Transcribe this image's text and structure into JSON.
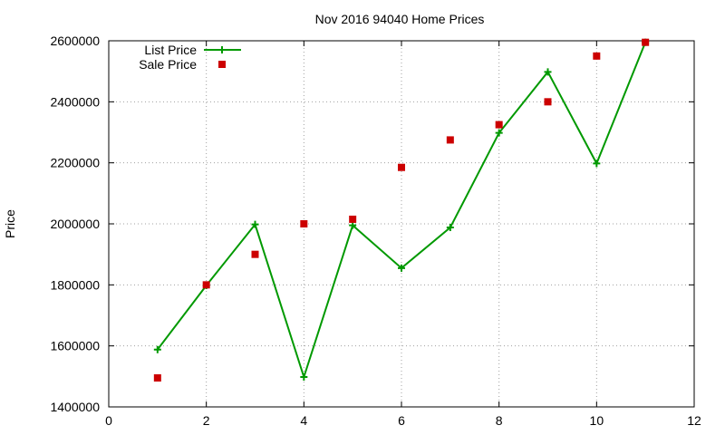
{
  "chart_data": {
    "type": "line",
    "title": "Nov 2016 94040 Home Prices",
    "xlabel": "",
    "ylabel": "Price",
    "xlim": [
      0,
      12
    ],
    "ylim": [
      1400000,
      2600000
    ],
    "xticks": [
      "0",
      "2",
      "4",
      "6",
      "8",
      "10",
      "12"
    ],
    "yticks": [
      "1400000",
      "1600000",
      "1800000",
      "2000000",
      "2200000",
      "2400000",
      "2600000"
    ],
    "grid": true,
    "legend_position": "top-left",
    "series": [
      {
        "name": "List Price",
        "style": "line-plus",
        "color": "#009900",
        "x": [
          1,
          2,
          3,
          4,
          5,
          6,
          7,
          8,
          9,
          10,
          11
        ],
        "y": [
          1588000,
          1798000,
          1998000,
          1498000,
          1995000,
          1855000,
          1988000,
          2298000,
          2498000,
          2198000,
          2595000
        ]
      },
      {
        "name": "Sale Price",
        "style": "square-points",
        "color": "#cc0000",
        "x": [
          1,
          2,
          3,
          4,
          5,
          6,
          7,
          8,
          9,
          10,
          11
        ],
        "y": [
          1495000,
          1800000,
          1900000,
          2000000,
          2015000,
          2185000,
          2275000,
          2325000,
          2400000,
          2550000,
          2595000
        ]
      }
    ]
  }
}
